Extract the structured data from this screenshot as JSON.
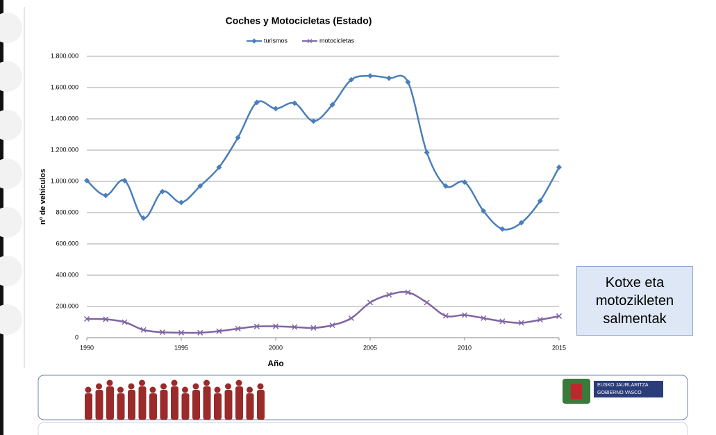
{
  "chart_data": {
    "type": "line",
    "title": "Coches y Motocicletas (Estado)",
    "x_label": "Año",
    "y_label": "nº de vehículos",
    "x": [
      1990,
      1991,
      1992,
      1993,
      1994,
      1995,
      1996,
      1997,
      1998,
      1999,
      2000,
      2001,
      2002,
      2003,
      2004,
      2005,
      2006,
      2007,
      2008,
      2009,
      2010,
      2011,
      2012,
      2013,
      2014,
      2015
    ],
    "series": [
      {
        "name": "turismos",
        "color": "#4a7ebb",
        "marker": "diamond",
        "values": [
          1005000,
          910000,
          1005000,
          765000,
          935000,
          865000,
          970000,
          1090000,
          1280000,
          1505000,
          1465000,
          1500000,
          1385000,
          1490000,
          1650000,
          1675000,
          1660000,
          1635000,
          1185000,
          970000,
          995000,
          810000,
          695000,
          735000,
          875000,
          1090000
        ]
      },
      {
        "name": "motocicletas",
        "color": "#8064a2",
        "marker": "cross",
        "values": [
          120000,
          118000,
          100000,
          50000,
          35000,
          32000,
          32000,
          42000,
          58000,
          72000,
          73000,
          68000,
          63000,
          80000,
          125000,
          225000,
          275000,
          290000,
          225000,
          140000,
          145000,
          125000,
          105000,
          95000,
          115000,
          138000
        ]
      }
    ],
    "xlim": [
      1990,
      2015
    ],
    "xticks": [
      1990,
      1995,
      2000,
      2005,
      2010,
      2015
    ],
    "ylim": [
      0,
      1800000
    ],
    "yticks": [
      0,
      {
        "value": 200000,
        "label": "200.000"
      },
      {
        "value": 400000,
        "label": "400.000"
      },
      {
        "value": 600000,
        "label": "600.000"
      },
      {
        "value": 800000,
        "label": "800.000"
      },
      {
        "value": 1000000,
        "label": "1.000.000"
      },
      {
        "value": 1200000,
        "label": "1.200.000"
      },
      {
        "value": 1400000,
        "label": "1.400.000"
      },
      {
        "value": 1600000,
        "label": "1.600.000"
      },
      {
        "value": 1800000,
        "label": "1.800.000"
      }
    ],
    "grid": true,
    "legend": "top"
  },
  "note_box": {
    "text": "Kotxe eta motozikleten salmentak"
  },
  "footer": {
    "logo_line1": "EUSKO JAURLARITZA",
    "logo_line2": "GOBIERNO VASCO"
  }
}
